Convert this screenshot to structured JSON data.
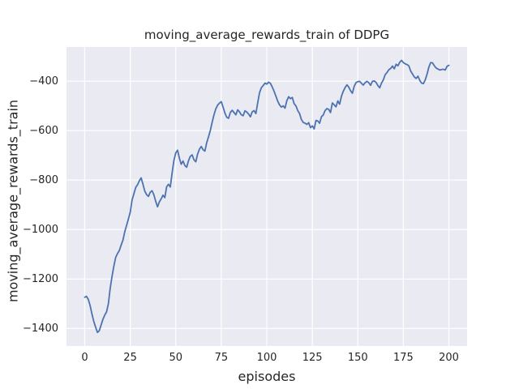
{
  "figure": {
    "title": "moving_average_rewards_train of DDPG",
    "background": "#ffffff"
  },
  "axes": {
    "xlabel": "episodes",
    "ylabel": "moving_average_rewards_train",
    "x_tick_labels": [
      "0",
      "25",
      "50",
      "75",
      "100",
      "125",
      "150",
      "175",
      "200"
    ],
    "y_tick_labels": [
      "−400",
      "−600",
      "−800",
      "−1000",
      "−1200",
      "−1400"
    ],
    "background": "#eaeaf2",
    "grid_color": "#ffffff",
    "text_color": "#262626"
  },
  "chart_data": {
    "type": "line",
    "title": "moving_average_rewards_train of DDPG",
    "xlabel": "episodes",
    "ylabel": "moving_average_rewards_train",
    "x_ticks": [
      0,
      25,
      50,
      75,
      100,
      125,
      150,
      175,
      200
    ],
    "y_ticks": [
      -400,
      -600,
      -800,
      -1000,
      -1200,
      -1400
    ],
    "xlim": [
      -10,
      210
    ],
    "ylim": [
      -1471,
      -262
    ],
    "grid": true,
    "legend": false,
    "line_color": "#4C72B0",
    "line_width": 1.8,
    "series": [
      {
        "name": "moving_average_rewards_train",
        "x_start": 0,
        "x_step": 1,
        "values": [
          -1274,
          -1270,
          -1283,
          -1308,
          -1342,
          -1372,
          -1395,
          -1416,
          -1409,
          -1386,
          -1363,
          -1346,
          -1333,
          -1300,
          -1237,
          -1190,
          -1148,
          -1113,
          -1097,
          -1085,
          -1063,
          -1043,
          -1009,
          -983,
          -957,
          -930,
          -881,
          -856,
          -830,
          -819,
          -803,
          -791,
          -817,
          -845,
          -859,
          -866,
          -849,
          -843,
          -860,
          -886,
          -908,
          -888,
          -876,
          -861,
          -871,
          -827,
          -817,
          -828,
          -771,
          -720,
          -690,
          -679,
          -712,
          -736,
          -723,
          -741,
          -748,
          -722,
          -704,
          -698,
          -718,
          -726,
          -695,
          -675,
          -664,
          -677,
          -683,
          -649,
          -625,
          -599,
          -566,
          -536,
          -512,
          -497,
          -489,
          -483,
          -505,
          -529,
          -546,
          -550,
          -526,
          -518,
          -527,
          -536,
          -516,
          -524,
          -536,
          -540,
          -520,
          -525,
          -533,
          -544,
          -524,
          -519,
          -531,
          -488,
          -447,
          -427,
          -418,
          -408,
          -412,
          -404,
          -409,
          -424,
          -441,
          -461,
          -481,
          -496,
          -505,
          -500,
          -509,
          -479,
          -463,
          -471,
          -466,
          -491,
          -500,
          -519,
          -531,
          -555,
          -567,
          -570,
          -575,
          -568,
          -588,
          -581,
          -593,
          -559,
          -561,
          -570,
          -544,
          -537,
          -519,
          -511,
          -514,
          -527,
          -488,
          -496,
          -504,
          -480,
          -493,
          -461,
          -441,
          -426,
          -415,
          -424,
          -439,
          -449,
          -421,
          -406,
          -402,
          -401,
          -409,
          -416,
          -406,
          -401,
          -406,
          -417,
          -401,
          -399,
          -405,
          -418,
          -427,
          -408,
          -395,
          -374,
          -365,
          -354,
          -349,
          -339,
          -350,
          -332,
          -338,
          -324,
          -316,
          -325,
          -330,
          -333,
          -338,
          -359,
          -371,
          -383,
          -389,
          -380,
          -397,
          -408,
          -410,
          -395,
          -372,
          -343,
          -325,
          -326,
          -338,
          -347,
          -351,
          -355,
          -353,
          -352,
          -355,
          -340,
          -336
        ]
      }
    ]
  }
}
